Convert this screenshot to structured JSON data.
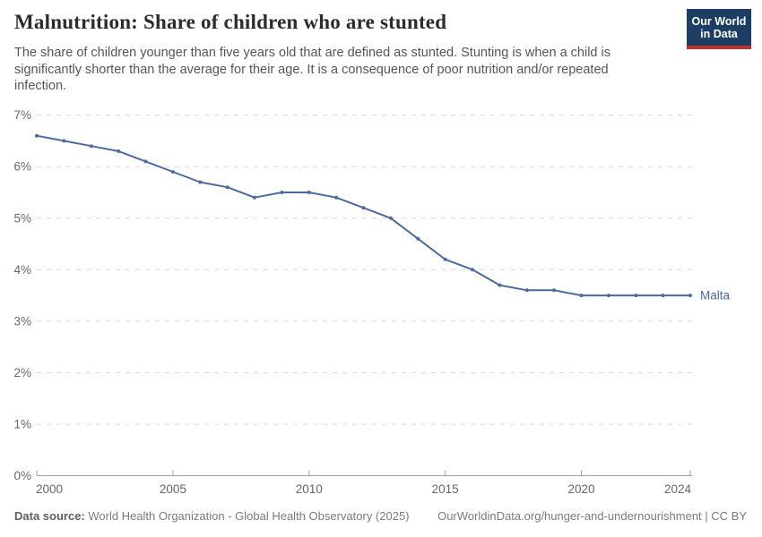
{
  "header": {
    "title": "Malnutrition: Share of children who are stunted",
    "subtitle": "The share of children younger than five years old that are defined as stunted. Stunting is when a child is significantly shorter than the average for their age. It is a consequence of poor nutrition and/or repeated infection.",
    "logo": {
      "line1": "Our World",
      "line2": "in Data",
      "bg_color": "#1D3D63",
      "accent_color": "#C4302B"
    }
  },
  "chart_data": {
    "type": "line",
    "title": "Malnutrition: Share of children who are stunted",
    "x": [
      2000,
      2001,
      2002,
      2003,
      2004,
      2005,
      2006,
      2007,
      2008,
      2009,
      2010,
      2011,
      2012,
      2013,
      2014,
      2015,
      2016,
      2017,
      2018,
      2019,
      2020,
      2021,
      2022,
      2023,
      2024
    ],
    "series": [
      {
        "name": "Malta",
        "values": [
          6.6,
          6.5,
          6.4,
          6.3,
          6.1,
          5.9,
          5.7,
          5.6,
          5.4,
          5.5,
          5.5,
          5.4,
          5.2,
          5.0,
          4.6,
          4.2,
          4.0,
          3.7,
          3.6,
          3.6,
          3.5,
          3.5,
          3.5,
          3.5,
          3.5
        ],
        "color": "#4C6A9C"
      }
    ],
    "xlabel": "",
    "ylabel": "",
    "ylim": [
      0,
      7
    ],
    "ytick_labels": [
      "0%",
      "1%",
      "2%",
      "3%",
      "4%",
      "5%",
      "6%",
      "7%"
    ],
    "xticks": [
      2000,
      2005,
      2010,
      2015,
      2020,
      2024
    ],
    "grid": "horizontal-dashed",
    "legend": "end-of-line-label",
    "colors": {
      "line": "#4C6A9C",
      "grid": "#d8d8d8",
      "axis": "#a0a0a0",
      "tick_label": "#666666",
      "entity_label": "#4C6A9C"
    }
  },
  "footer": {
    "source_label": "Data source:",
    "source_text": " World Health Organization - Global Health Observatory (2025)",
    "link_text": "OurWorldinData.org/hunger-and-undernourishment | CC BY"
  }
}
